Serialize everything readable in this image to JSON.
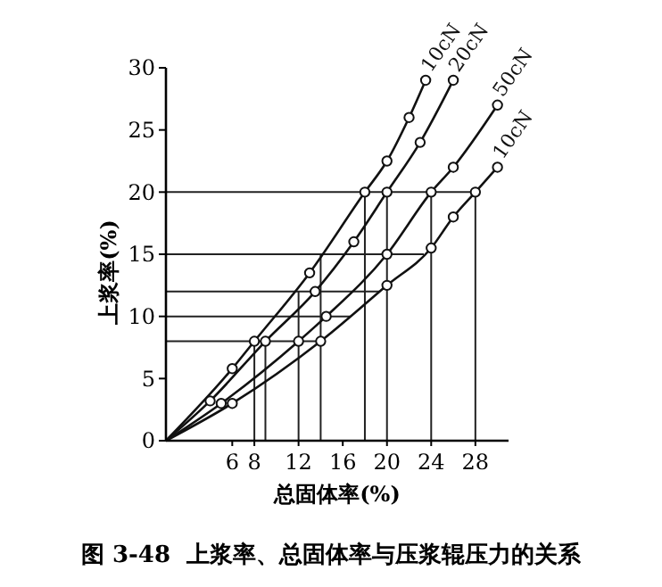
{
  "chart_data": {
    "type": "line",
    "title": "图 3-48  上浆率、总固体率与压浆辊压力的关系",
    "xlabel": "总固体率(%)",
    "ylabel": "上浆率(%)",
    "xlim": [
      0,
      31
    ],
    "xticks": [
      6,
      8,
      12,
      16,
      20,
      24,
      28
    ],
    "ylim": [
      0,
      30
    ],
    "yticks": [
      0,
      5,
      10,
      15,
      20,
      25,
      30
    ],
    "grid": false,
    "marker": "circle",
    "line_style": "solid",
    "series": [
      {
        "name": "10cN",
        "color": "#111111",
        "x": [
          0,
          6,
          8,
          13,
          18,
          20,
          22,
          23.5
        ],
        "values": [
          0,
          5.8,
          8,
          13.5,
          20,
          22.5,
          26,
          29
        ]
      },
      {
        "name": "20cN",
        "color": "#111111",
        "x": [
          0,
          4,
          9,
          13.5,
          17,
          20,
          23,
          26
        ],
        "values": [
          0,
          3.2,
          8,
          12,
          16,
          20,
          24,
          29
        ]
      },
      {
        "name": "50cN",
        "color": "#111111",
        "x": [
          0,
          5,
          12,
          14.5,
          20,
          24,
          26,
          30
        ],
        "values": [
          0,
          3,
          8,
          10,
          15,
          20,
          22,
          27
        ]
      },
      {
        "name": "10cN",
        "color": "#111111",
        "x": [
          0,
          6,
          14,
          20,
          24,
          26,
          28,
          30
        ],
        "values": [
          0,
          3,
          8,
          12.5,
          15.5,
          18,
          20,
          22
        ]
      }
    ],
    "ref_lines": [
      {
        "axis": "y",
        "value": 8
      },
      {
        "axis": "y",
        "value": 10
      },
      {
        "axis": "y",
        "value": 12
      },
      {
        "axis": "y",
        "value": 15
      },
      {
        "axis": "y",
        "value": 20
      },
      {
        "axis": "x",
        "value": 8
      },
      {
        "axis": "x",
        "value": 9
      },
      {
        "axis": "x",
        "value": 12
      },
      {
        "axis": "x",
        "value": 14
      },
      {
        "axis": "x",
        "value": 18
      },
      {
        "axis": "x",
        "value": 20
      },
      {
        "axis": "x",
        "value": 24
      },
      {
        "axis": "x",
        "value": 28
      }
    ]
  }
}
